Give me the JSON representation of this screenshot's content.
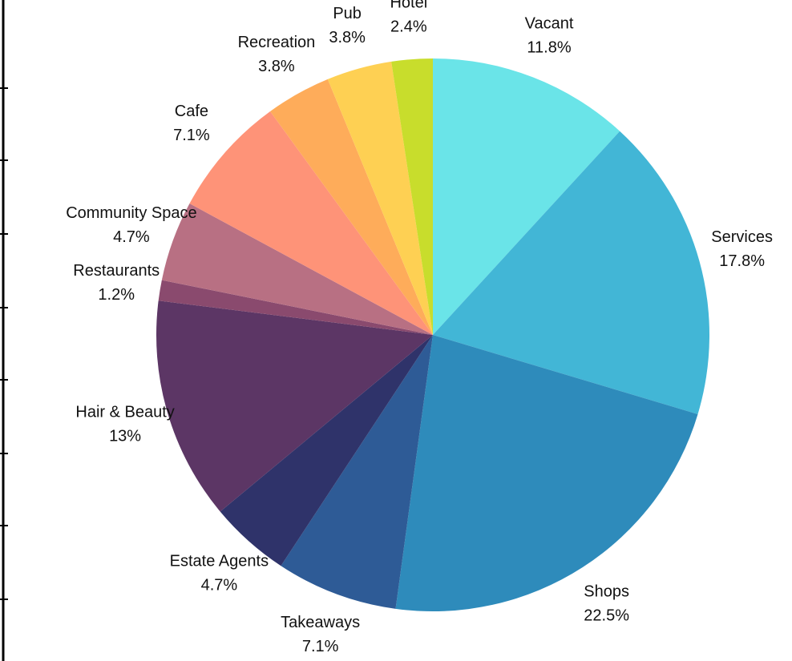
{
  "chart_data": {
    "type": "pie",
    "categories": [
      "Vacant",
      "Services",
      "Shops",
      "Takeaways",
      "Estate Agents",
      "Hair & Beauty",
      "Restaurants",
      "Community Space",
      "Cafe",
      "Recreation",
      "Pub",
      "Hotel"
    ],
    "values": [
      11.8,
      17.8,
      22.5,
      7.1,
      4.7,
      13,
      1.2,
      4.7,
      7.1,
      3.8,
      3.8,
      2.4
    ],
    "value_labels": [
      "11.8%",
      "17.8%",
      "22.5%",
      "7.1%",
      "4.7%",
      "13%",
      "1.2%",
      "4.7%",
      "7.1%",
      "3.8%",
      "3.8%",
      "2.4%"
    ],
    "colors": [
      "#6ae4e8",
      "#42b6d6",
      "#2e8bbb",
      "#2e5b96",
      "#2f336a",
      "#5c3665",
      "#8a4a6e",
      "#b87083",
      "#fe9378",
      "#feac5a",
      "#fed053",
      "#c8dd2c"
    ]
  }
}
